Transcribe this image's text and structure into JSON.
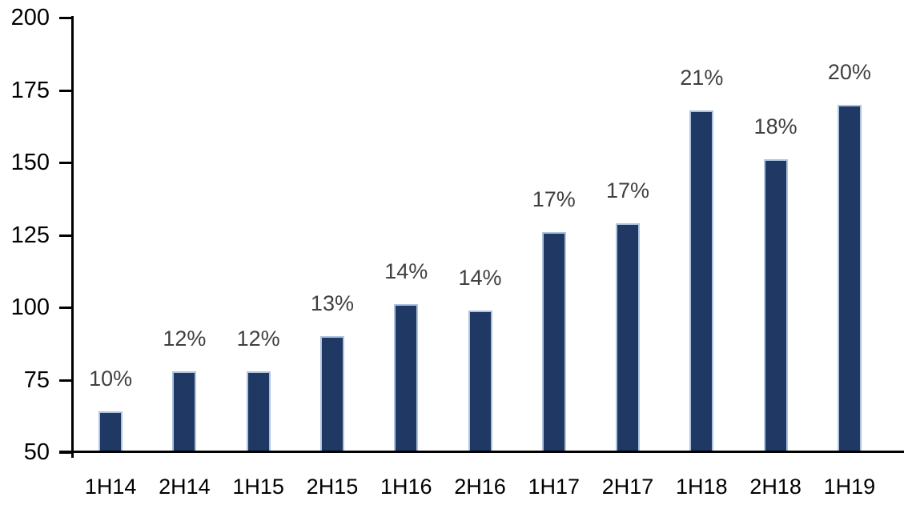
{
  "chart_data": {
    "type": "bar",
    "title": "",
    "xlabel": "",
    "ylabel": "",
    "categories": [
      "1H14",
      "2H14",
      "1H15",
      "2H15",
      "1H16",
      "2H16",
      "1H17",
      "2H17",
      "1H18",
      "2H18",
      "1H19"
    ],
    "values": [
      64,
      78,
      78,
      90,
      101,
      99,
      126,
      129,
      168,
      151,
      170
    ],
    "bar_labels": [
      "10%",
      "12%",
      "12%",
      "13%",
      "14%",
      "14%",
      "17%",
      "17%",
      "21%",
      "18%",
      "20%"
    ],
    "ylim": [
      50,
      200
    ],
    "y_ticks": [
      50,
      75,
      100,
      125,
      150,
      175,
      200
    ],
    "grid": false,
    "legend": "none",
    "colors": {
      "bar_fill": "#1F3864",
      "bar_border": "#AEC3DE",
      "value_label": "#404040",
      "axis": "#000000",
      "tick_label": "#000000",
      "background": "#ffffff"
    }
  }
}
